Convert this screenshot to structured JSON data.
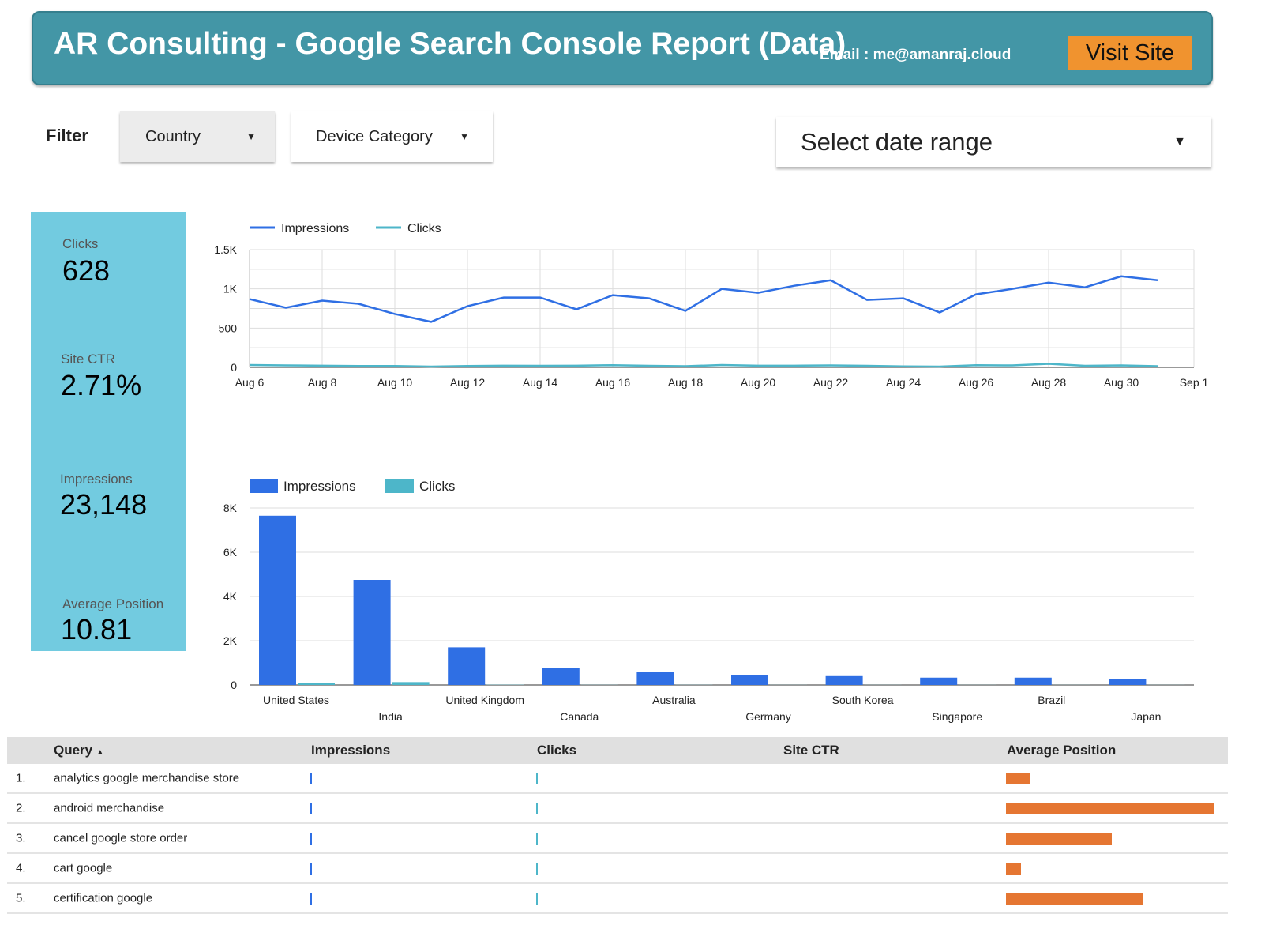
{
  "header": {
    "title": "AR Consulting - Google Search Console Report (Data)",
    "email": "Email : me@amanraj.cloud",
    "visit_label": "Visit Site"
  },
  "filters": {
    "label": "Filter",
    "country": "Country",
    "device": "Device Category",
    "date_range": "Select date range"
  },
  "kpis": [
    {
      "label": "Clicks",
      "value": "628"
    },
    {
      "label": "Site CTR",
      "value": "2.71%"
    },
    {
      "label": "Impressions",
      "value": "23,148"
    },
    {
      "label": "Average Position",
      "value": "10.81"
    }
  ],
  "colors": {
    "header": "#4396a6",
    "visit": "#f0932f",
    "kpi": "#72cbe0",
    "impressions": "#2f6fe4",
    "clicks": "#4db6c9",
    "avg_position": "#e57632"
  },
  "chart_data": [
    {
      "type": "line",
      "legend": "top-left",
      "grid": true,
      "x_ticks": [
        "Aug 6",
        "Aug 8",
        "Aug 10",
        "Aug 12",
        "Aug 14",
        "Aug 16",
        "Aug 18",
        "Aug 20",
        "Aug 22",
        "Aug 24",
        "Aug 26",
        "Aug 28",
        "Aug 30",
        "Sep 1"
      ],
      "y_ticks": [
        "0",
        "500",
        "1K",
        "1.5K"
      ],
      "ylim": [
        0,
        1500
      ],
      "x": [
        "Aug 6",
        "Aug 7",
        "Aug 8",
        "Aug 9",
        "Aug 10",
        "Aug 11",
        "Aug 12",
        "Aug 13",
        "Aug 14",
        "Aug 15",
        "Aug 16",
        "Aug 17",
        "Aug 18",
        "Aug 19",
        "Aug 20",
        "Aug 21",
        "Aug 22",
        "Aug 23",
        "Aug 24",
        "Aug 25",
        "Aug 26",
        "Aug 27",
        "Aug 28",
        "Aug 29",
        "Aug 30",
        "Aug 31"
      ],
      "series": [
        {
          "name": "Impressions",
          "values": [
            870,
            760,
            850,
            810,
            680,
            580,
            780,
            890,
            890,
            740,
            920,
            880,
            720,
            1000,
            950,
            1040,
            1110,
            860,
            880,
            700,
            930,
            1000,
            1080,
            1020,
            1160,
            1110
          ]
        },
        {
          "name": "Clicks",
          "values": [
            30,
            25,
            22,
            18,
            18,
            10,
            18,
            22,
            20,
            22,
            28,
            20,
            15,
            30,
            22,
            22,
            25,
            20,
            12,
            10,
            28,
            25,
            45,
            20,
            25,
            15
          ]
        }
      ]
    },
    {
      "type": "bar",
      "legend": "top-left",
      "grid": true,
      "categories": [
        "United States",
        "India",
        "United Kingdom",
        "Canada",
        "Australia",
        "Germany",
        "South Korea",
        "Singapore",
        "Brazil",
        "Japan"
      ],
      "y_ticks": [
        "0",
        "2K",
        "4K",
        "6K",
        "8K"
      ],
      "ylim": [
        0,
        8000
      ],
      "series": [
        {
          "name": "Impressions",
          "values": [
            7650,
            4750,
            1700,
            750,
            600,
            450,
            400,
            330,
            330,
            280
          ]
        },
        {
          "name": "Clicks",
          "values": [
            100,
            130,
            10,
            5,
            5,
            3,
            3,
            3,
            3,
            3
          ]
        }
      ]
    }
  ],
  "table": {
    "columns": [
      "Query",
      "Impressions",
      "Clicks",
      "Site CTR",
      "Average Position"
    ],
    "sort_indicator": "▲",
    "rows": [
      {
        "num": "1.",
        "query": "analytics google merchandise store",
        "impressions_fill": 0.005,
        "clicks_fill": 0.005,
        "ctr_fill": 0.005,
        "avg_position_fill": 0.114
      },
      {
        "num": "2.",
        "query": "android merchandise",
        "impressions_fill": 0.005,
        "clicks_fill": 0.005,
        "ctr_fill": 0.005,
        "avg_position_fill": 1.0
      },
      {
        "num": "3.",
        "query": "cancel google store order",
        "impressions_fill": 0.005,
        "clicks_fill": 0.005,
        "ctr_fill": 0.005,
        "avg_position_fill": 0.506
      },
      {
        "num": "4.",
        "query": "cart google",
        "impressions_fill": 0.005,
        "clicks_fill": 0.005,
        "ctr_fill": 0.005,
        "avg_position_fill": 0.072
      },
      {
        "num": "5.",
        "query": "certification google",
        "impressions_fill": 0.005,
        "clicks_fill": 0.005,
        "ctr_fill": 0.005,
        "avg_position_fill": 0.66
      }
    ]
  }
}
